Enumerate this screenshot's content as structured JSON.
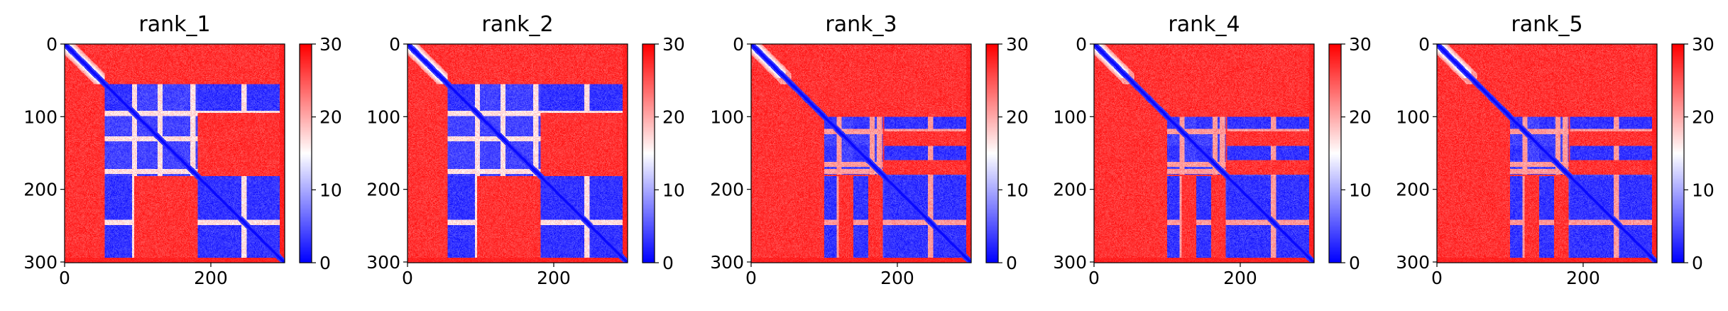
{
  "chart_data": [
    {
      "type": "heatmap",
      "title": "rank_1",
      "xlim": [
        0,
        301
      ],
      "ylim": [
        301,
        0
      ],
      "x_ticks": [
        0,
        200
      ],
      "y_ticks": [
        0,
        100,
        200,
        300
      ],
      "x_tick_labels": [
        "0",
        "200"
      ],
      "y_tick_labels": [
        "0",
        "100",
        "200",
        "300"
      ],
      "colorbar": {
        "min": 0,
        "max": 30,
        "ticks": [
          "0",
          "10",
          "20",
          "30"
        ],
        "colormap": "bwr",
        "colors": [
          "#0000ff",
          "#ffffff",
          "#ff0000"
        ]
      },
      "domains": [
        [
          0,
          55
        ],
        [
          55,
          182
        ],
        [
          182,
          301
        ]
      ],
      "low_bands": [
        [
          55,
          95
        ],
        [
          182,
          301
        ]
      ],
      "gap_lines": [
        95,
        130,
        175,
        245
      ],
      "gap_level": 17
    },
    {
      "type": "heatmap",
      "title": "rank_2",
      "xlim": [
        0,
        301
      ],
      "ylim": [
        301,
        0
      ],
      "x_ticks": [
        0,
        200
      ],
      "y_ticks": [
        0,
        100,
        200,
        300
      ],
      "x_tick_labels": [
        "0",
        "200"
      ],
      "y_tick_labels": [
        "0",
        "100",
        "200",
        "300"
      ],
      "colorbar": {
        "min": 0,
        "max": 30,
        "ticks": [
          "0",
          "10",
          "20",
          "30"
        ],
        "colormap": "bwr",
        "colors": [
          "#0000ff",
          "#ffffff",
          "#ff0000"
        ]
      },
      "domains": [
        [
          0,
          55
        ],
        [
          55,
          182
        ],
        [
          182,
          301
        ]
      ],
      "low_bands": [
        [
          55,
          95
        ],
        [
          182,
          301
        ]
      ],
      "gap_lines": [
        95,
        130,
        175,
        245
      ],
      "gap_level": 17
    },
    {
      "type": "heatmap",
      "title": "rank_3",
      "xlim": [
        0,
        301
      ],
      "ylim": [
        301,
        0
      ],
      "x_ticks": [
        0,
        200
      ],
      "y_ticks": [
        0,
        100,
        200,
        300
      ],
      "x_tick_labels": [
        "0",
        "200"
      ],
      "y_tick_labels": [
        "0",
        "100",
        "200",
        "300"
      ],
      "colorbar": {
        "min": 0,
        "max": 30,
        "ticks": [
          "0",
          "10",
          "20",
          "30"
        ],
        "colormap": "bwr",
        "colors": [
          "#0000ff",
          "#ffffff",
          "#ff0000"
        ]
      },
      "domains": [
        [
          0,
          100
        ],
        [
          100,
          180
        ],
        [
          180,
          301
        ]
      ],
      "low_bands": [
        [
          100,
          120
        ],
        [
          140,
          160
        ],
        [
          182,
          301
        ]
      ],
      "gap_lines": [
        50,
        120,
        165,
        175,
        245
      ],
      "gap_level": 21
    },
    {
      "type": "heatmap",
      "title": "rank_4",
      "xlim": [
        0,
        301
      ],
      "ylim": [
        301,
        0
      ],
      "x_ticks": [
        0,
        200
      ],
      "y_ticks": [
        0,
        100,
        200,
        300
      ],
      "x_tick_labels": [
        "0",
        "200"
      ],
      "y_tick_labels": [
        "0",
        "100",
        "200",
        "300"
      ],
      "colorbar": {
        "min": 0,
        "max": 30,
        "ticks": [
          "0",
          "10",
          "20",
          "30"
        ],
        "colormap": "bwr",
        "colors": [
          "#0000ff",
          "#ffffff",
          "#ff0000"
        ]
      },
      "domains": [
        [
          0,
          100
        ],
        [
          100,
          180
        ],
        [
          180,
          301
        ]
      ],
      "low_bands": [
        [
          100,
          120
        ],
        [
          140,
          160
        ],
        [
          182,
          301
        ]
      ],
      "gap_lines": [
        50,
        120,
        165,
        175,
        245
      ],
      "gap_level": 21
    },
    {
      "type": "heatmap",
      "title": "rank_5",
      "xlim": [
        0,
        301
      ],
      "ylim": [
        301,
        0
      ],
      "x_ticks": [
        0,
        200
      ],
      "y_ticks": [
        0,
        100,
        200,
        300
      ],
      "x_tick_labels": [
        "0",
        "200"
      ],
      "y_tick_labels": [
        "0",
        "100",
        "200",
        "300"
      ],
      "colorbar": {
        "min": 0,
        "max": 30,
        "ticks": [
          "0",
          "10",
          "20",
          "30"
        ],
        "colormap": "bwr",
        "colors": [
          "#0000ff",
          "#ffffff",
          "#ff0000"
        ]
      },
      "domains": [
        [
          0,
          100
        ],
        [
          100,
          180
        ],
        [
          180,
          301
        ]
      ],
      "low_bands": [
        [
          100,
          120
        ],
        [
          140,
          160
        ],
        [
          182,
          301
        ]
      ],
      "gap_lines": [
        50,
        120,
        165,
        175,
        245
      ],
      "gap_level": 21
    }
  ]
}
